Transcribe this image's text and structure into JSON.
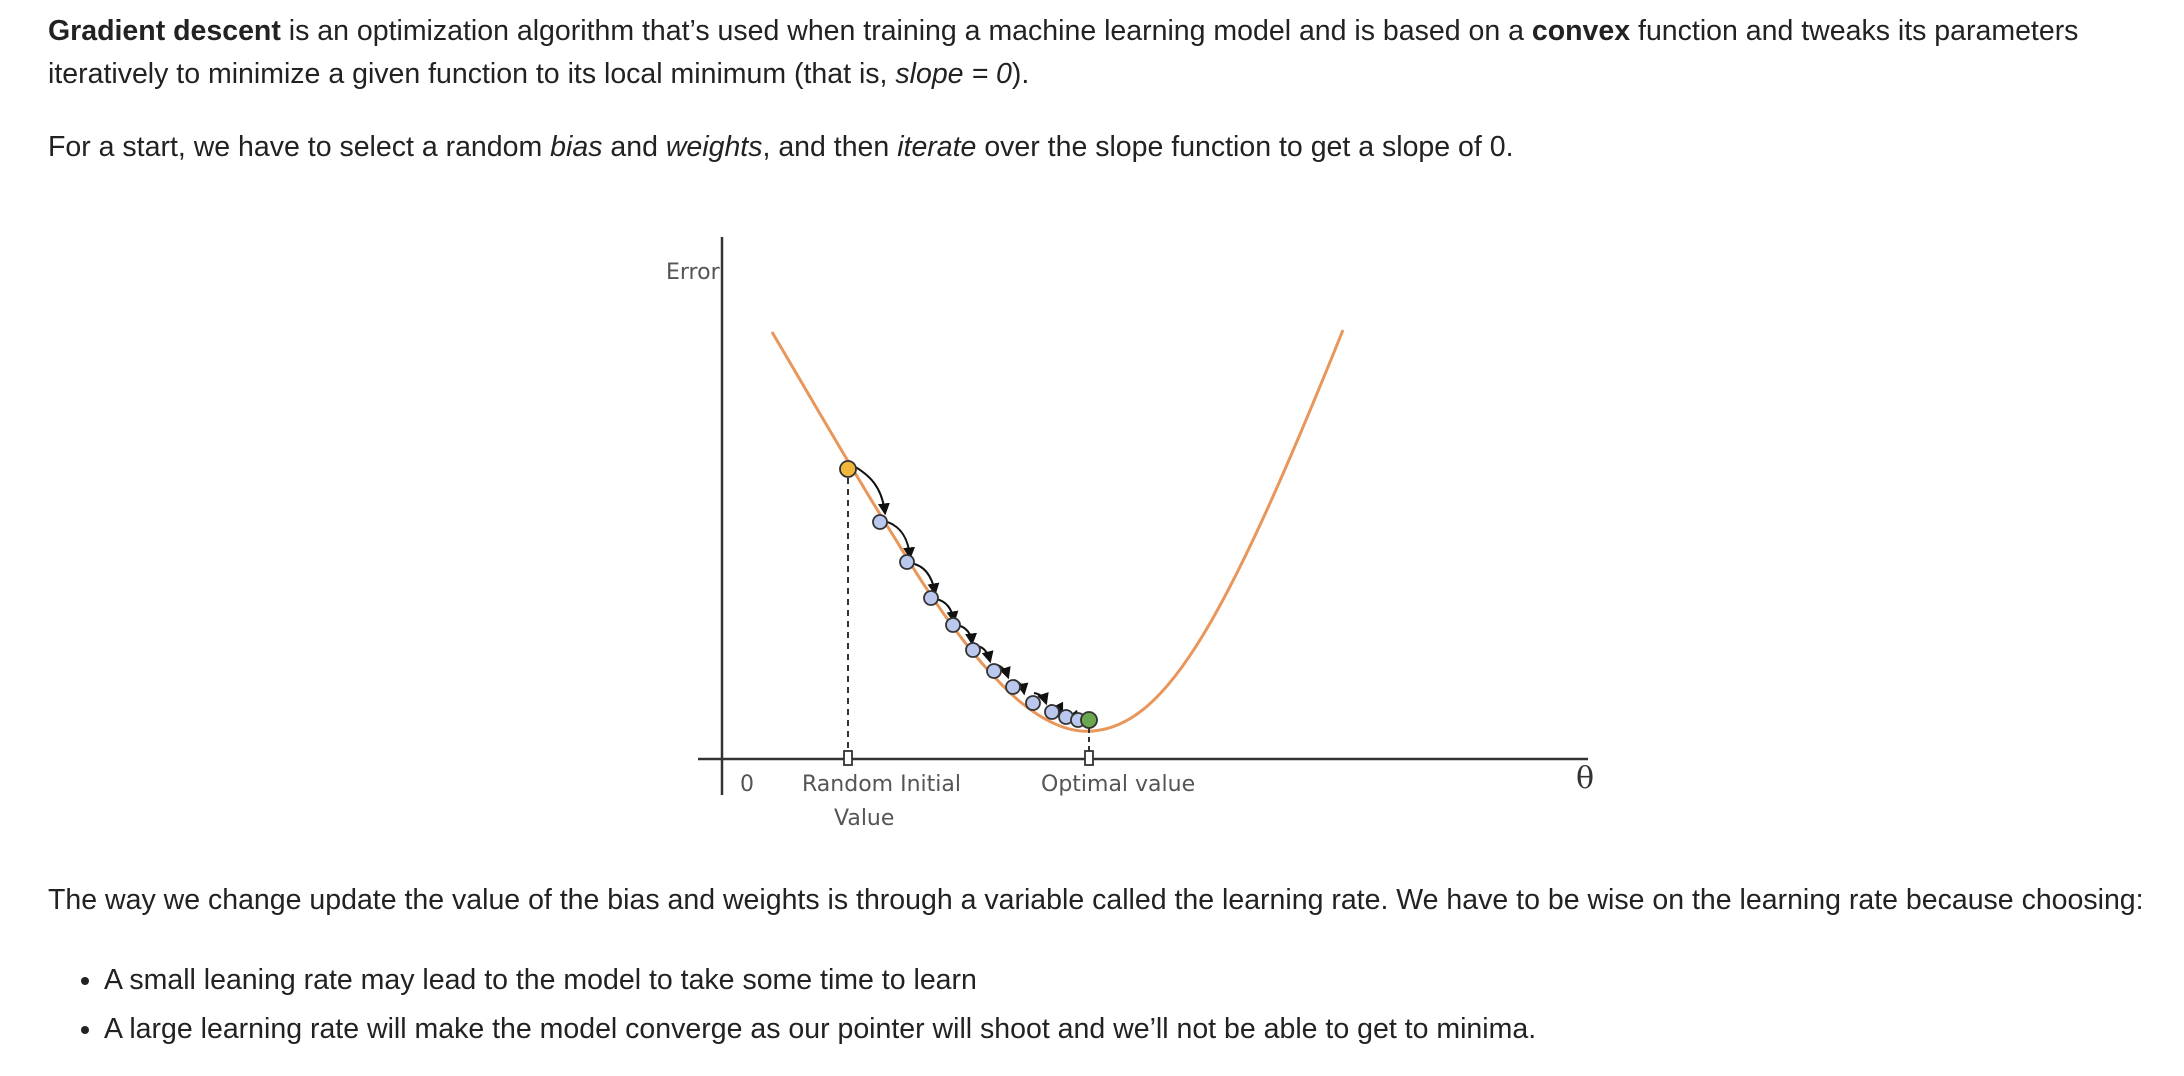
{
  "p1": {
    "s1": "Gradient descent",
    "s2": " is an optimization algorithm that’s used when training a machine learning model and is based on a ",
    "s3": "convex",
    "s4": " function and tweaks its parameters iteratively to minimize a given function to its local minimum (that is, ",
    "s5": "slope = 0",
    "s6": ")."
  },
  "p2": {
    "s1": "For a start, we have to select a random ",
    "s2": "bias",
    "s3": " and ",
    "s4": "weights",
    "s5": ", and then ",
    "s6": "iterate",
    "s7": " over the slope function to get a slope of 0."
  },
  "figure": {
    "ylabel": "Error",
    "origin": "0",
    "init_line1": "Random Initial",
    "init_line2": "Value",
    "optimal": "Optimal value",
    "xlabel": "θ",
    "colors": {
      "curve": "#e8965a",
      "start_point": "#f2b63a",
      "step_point": "#b9c8ec",
      "end_point": "#6aa84f",
      "axis": "#333333"
    }
  },
  "p3": "The way we change update the value of the bias and weights is through a variable called the learning rate. We have to be wise on the learning rate because choosing:",
  "bullets": [
    "A small leaning rate may lead to the model to take some time to learn",
    "A large learning rate will make the model converge as our pointer will shoot and we’ll not be able to get to minima."
  ]
}
